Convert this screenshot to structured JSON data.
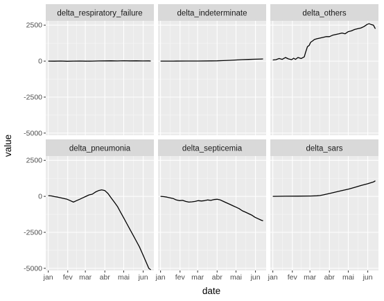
{
  "chart_data": {
    "type": "line",
    "layout": "facet-grid 2x3, shared y axis",
    "xlabel": "date",
    "ylabel": "value",
    "x_tick_labels": [
      "jan",
      "fev",
      "mar",
      "abr",
      "mai",
      "jun"
    ],
    "x_ticks": [
      0,
      31,
      59,
      90,
      120,
      151
    ],
    "xlim": [
      -4,
      168
    ],
    "y_ticks": [
      -5000,
      -2500,
      0,
      2500
    ],
    "y_tick_labels": [
      "-5000",
      "-2500",
      "0",
      "2500"
    ],
    "ylim": [
      -5150,
      2800
    ],
    "grid": true,
    "panel_background": "#ebebeb",
    "strip_background": "#d9d9d9",
    "line_color": "#000000",
    "panels": [
      {
        "name": "delta_respiratory_failure",
        "x": [
          0,
          10,
          20,
          30,
          40,
          50,
          60,
          70,
          80,
          90,
          100,
          110,
          120,
          130,
          140,
          150,
          160,
          163
        ],
        "y": [
          0,
          -5,
          5,
          -10,
          0,
          5,
          -5,
          0,
          10,
          15,
          20,
          10,
          25,
          15,
          20,
          10,
          15,
          5
        ]
      },
      {
        "name": "delta_indeterminate",
        "x": [
          0,
          20,
          40,
          60,
          80,
          90,
          100,
          110,
          120,
          130,
          140,
          150,
          160,
          163
        ],
        "y": [
          0,
          0,
          5,
          5,
          15,
          20,
          35,
          55,
          80,
          100,
          115,
          130,
          145,
          150
        ]
      },
      {
        "name": "delta_others",
        "x": [
          0,
          5,
          10,
          15,
          20,
          25,
          30,
          33,
          36,
          40,
          45,
          50,
          52,
          55,
          58,
          60,
          63,
          66,
          70,
          75,
          80,
          85,
          90,
          95,
          100,
          105,
          110,
          115,
          120,
          125,
          130,
          135,
          140,
          145,
          150,
          153,
          156,
          160,
          163
        ],
        "y": [
          80,
          100,
          180,
          120,
          250,
          150,
          100,
          200,
          120,
          250,
          180,
          300,
          600,
          1000,
          1100,
          1300,
          1400,
          1500,
          1550,
          1600,
          1650,
          1700,
          1700,
          1800,
          1850,
          1900,
          1950,
          1900,
          2050,
          2100,
          2200,
          2250,
          2300,
          2400,
          2550,
          2600,
          2550,
          2500,
          2250
        ]
      },
      {
        "name": "delta_pneumonia",
        "x": [
          0,
          5,
          10,
          15,
          20,
          25,
          30,
          35,
          40,
          45,
          50,
          55,
          60,
          65,
          70,
          75,
          80,
          85,
          90,
          95,
          100,
          105,
          110,
          115,
          120,
          125,
          130,
          135,
          140,
          145,
          150,
          155,
          160,
          163
        ],
        "y": [
          50,
          30,
          -20,
          -50,
          -100,
          -150,
          -200,
          -300,
          -400,
          -300,
          -200,
          -100,
          0,
          100,
          150,
          300,
          400,
          450,
          400,
          200,
          -100,
          -400,
          -700,
          -1100,
          -1500,
          -1900,
          -2300,
          -2700,
          -3100,
          -3500,
          -4000,
          -4500,
          -5000,
          -5100
        ]
      },
      {
        "name": "delta_septicemia",
        "x": [
          0,
          5,
          10,
          15,
          20,
          25,
          30,
          35,
          40,
          45,
          50,
          55,
          60,
          65,
          70,
          75,
          80,
          85,
          90,
          95,
          100,
          105,
          110,
          115,
          120,
          125,
          130,
          135,
          140,
          145,
          150,
          155,
          160,
          163
        ],
        "y": [
          0,
          -20,
          -50,
          -100,
          -150,
          -250,
          -300,
          -280,
          -350,
          -400,
          -380,
          -350,
          -300,
          -320,
          -300,
          -250,
          -280,
          -220,
          -200,
          -250,
          -350,
          -450,
          -550,
          -650,
          -750,
          -850,
          -1000,
          -1100,
          -1200,
          -1300,
          -1450,
          -1550,
          -1650,
          -1700
        ]
      },
      {
        "name": "delta_sars",
        "x": [
          0,
          20,
          40,
          60,
          70,
          75,
          80,
          90,
          100,
          110,
          120,
          130,
          140,
          150,
          160,
          163
        ],
        "y": [
          0,
          10,
          15,
          25,
          40,
          60,
          100,
          200,
          300,
          400,
          500,
          620,
          750,
          870,
          1000,
          1080
        ]
      }
    ]
  }
}
